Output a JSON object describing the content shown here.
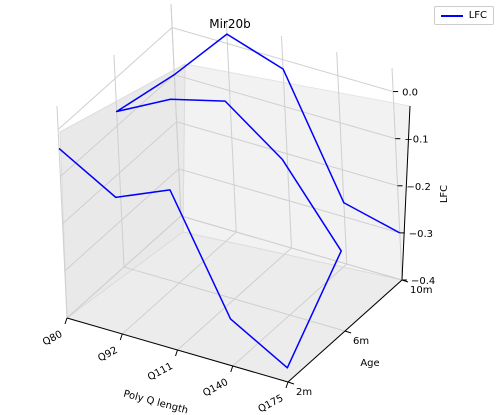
{
  "chart_data": {
    "type": "line",
    "title": "Mir20b",
    "xlabel": "Poly Q length",
    "ylabel": "Age",
    "zlabel": "LFC",
    "x_ticks": [
      "Q80",
      "Q92",
      "Q111",
      "Q140",
      "Q175"
    ],
    "y_ticks": [
      "2m",
      "6m",
      "10m"
    ],
    "z_ticks": [
      "0.0",
      "−0.1",
      "−0.2",
      "−0.3",
      "−0.4"
    ],
    "zlim": [
      -0.4,
      0.05
    ],
    "grid": true,
    "projection": "3d",
    "legend_position": "top-right",
    "series": [
      {
        "name": "LFC",
        "color": "#0000ff",
        "points": [
          {
            "x": "Q80",
            "y": "2m",
            "z": -0.04
          },
          {
            "x": "Q92",
            "y": "2m",
            "z": -0.11
          },
          {
            "x": "Q111",
            "y": "2m",
            "z": -0.06
          },
          {
            "x": "Q140",
            "y": "2m",
            "z": -0.3
          },
          {
            "x": "Q175",
            "y": "2m",
            "z": -0.37
          },
          {
            "x": "Q80",
            "y": "6m",
            "z": -0.07
          },
          {
            "x": "Q92",
            "y": "6m",
            "z": -0.01
          },
          {
            "x": "Q111",
            "y": "6m",
            "z": 0.02
          },
          {
            "x": "Q140",
            "y": "6m",
            "z": -0.07
          },
          {
            "x": "Q175",
            "y": "6m",
            "z": -0.23
          },
          {
            "x": "Q80",
            "y": "10m",
            "z": -0.1
          },
          {
            "x": "Q92",
            "y": "10m",
            "z": 0.02
          },
          {
            "x": "Q111",
            "y": "10m",
            "z": -0.02
          },
          {
            "x": "Q140",
            "y": "10m",
            "z": -0.27
          },
          {
            "x": "Q175",
            "y": "10m",
            "z": -0.3
          }
        ],
        "path_order": [
          0,
          1,
          2,
          3,
          4,
          9,
          8,
          7,
          6,
          5,
          10,
          11,
          12,
          13,
          14
        ]
      }
    ],
    "legend": [
      "LFC"
    ]
  }
}
